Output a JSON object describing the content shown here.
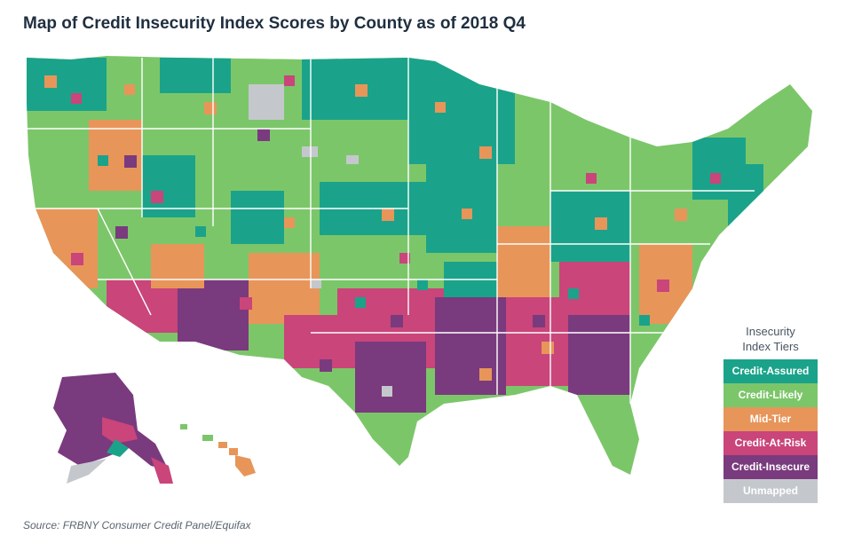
{
  "title": "Map of Credit Insecurity Index Scores by County as of 2018 Q4",
  "source": "Source: FRBNY Consumer Credit Panel/Equifax",
  "legend": {
    "title_line1": "Insecurity",
    "title_line2": "Index Tiers",
    "items": [
      {
        "label": "Credit-Assured",
        "color": "#1aa38a"
      },
      {
        "label": "Credit-Likely",
        "color": "#7cc66a"
      },
      {
        "label": "Mid-Tier",
        "color": "#e8955a"
      },
      {
        "label": "Credit-At-Risk",
        "color": "#c9457a"
      },
      {
        "label": "Credit-Insecure",
        "color": "#7a3a7e"
      },
      {
        "label": "Unmapped",
        "color": "#c4c8cc"
      }
    ]
  }
}
